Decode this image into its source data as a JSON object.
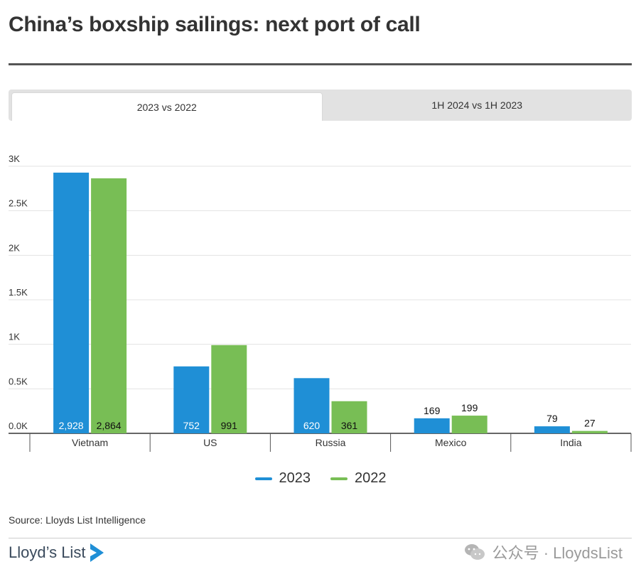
{
  "title": "China’s boxship sailings: next port of call",
  "tabs": [
    {
      "label": "2023 vs 2022",
      "active": true
    },
    {
      "label": "1H 2024 vs 1H 2023",
      "active": false
    }
  ],
  "chart_data": {
    "type": "bar",
    "categories": [
      "Vietnam",
      "US",
      "Russia",
      "Mexico",
      "India"
    ],
    "series": [
      {
        "name": "2023",
        "values": [
          2928,
          752,
          620,
          169,
          79
        ],
        "color": "#1f8fd6",
        "labels": [
          "2,928",
          "752",
          "620",
          "169",
          "79"
        ]
      },
      {
        "name": "2022",
        "values": [
          2864,
          991,
          361,
          199,
          27
        ],
        "color": "#78be55",
        "labels": [
          "2,864",
          "991",
          "361",
          "199",
          "27"
        ]
      }
    ],
    "ylim": [
      0,
      3000
    ],
    "yticks": [
      0,
      500,
      1000,
      1500,
      2000,
      2500,
      3000
    ],
    "ytick_labels": [
      "0.0K",
      "0.5K",
      "1K",
      "1.5K",
      "2K",
      "2.5K",
      "3K"
    ],
    "grid": true,
    "legend": "bottom-center"
  },
  "source": "Source: Lloyds List Intelligence",
  "logo_text": "Lloyd’s List",
  "watermark_text": "公众号 · LloydsList"
}
